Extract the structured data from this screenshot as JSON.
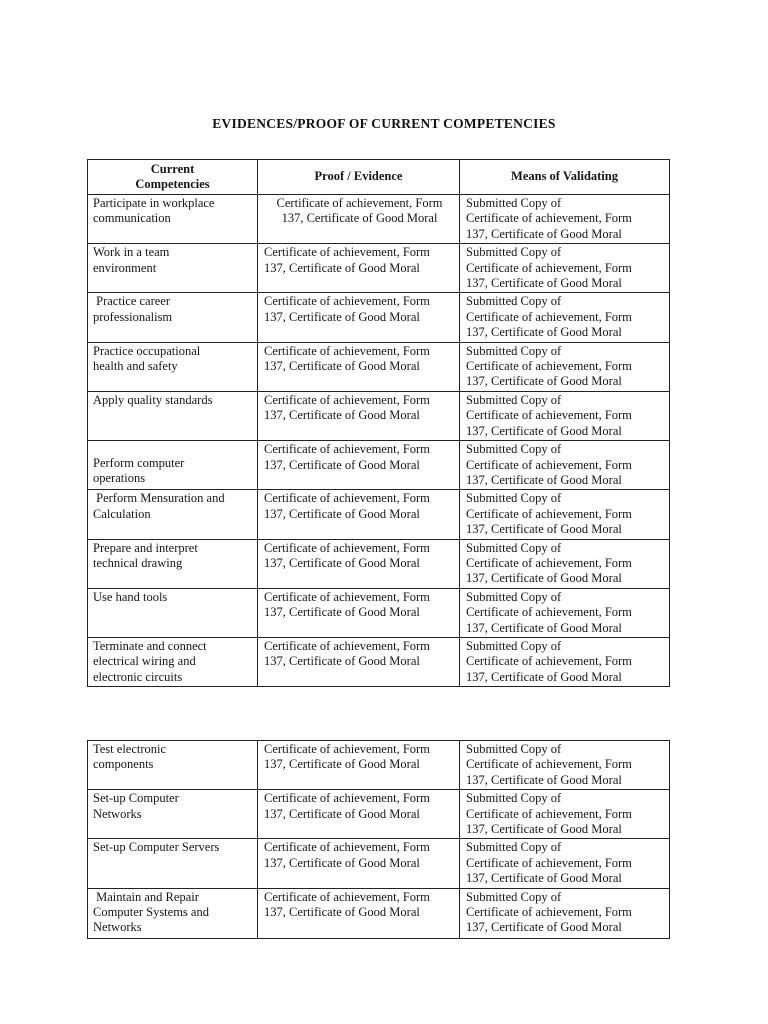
{
  "document": {
    "title": "EVIDENCES/PROOF OF CURRENT COMPETENCIES"
  },
  "table1": {
    "headers": {
      "competencies": "Current\nCompetencies",
      "proof": "Proof / Evidence",
      "means": "Means of Validating"
    },
    "rows": [
      {
        "competency": "Participate in workplace\ncommunication",
        "proof": "Certificate of achievement, Form\n137, Certificate of Good Moral",
        "means": "Submitted Copy of\nCertificate of achievement, Form\n137, Certificate of Good Moral",
        "proof_centered": true
      },
      {
        "competency": "Work in a team\nenvironment",
        "proof": "Certificate of achievement, Form\n137, Certificate of Good Moral",
        "means": "Submitted Copy of\nCertificate of achievement, Form\n137, Certificate of Good Moral"
      },
      {
        "competency": " Practice career\nprofessionalism",
        "proof": "Certificate of achievement, Form\n137, Certificate of Good Moral",
        "means": "Submitted Copy of\nCertificate of achievement, Form\n137, Certificate of Good Moral"
      },
      {
        "competency": "Practice occupational\nhealth and safety",
        "proof": "Certificate of achievement, Form\n137, Certificate of Good Moral",
        "means": "Submitted Copy of\nCertificate of achievement, Form\n137, Certificate of Good Moral"
      },
      {
        "competency": "Apply quality standards",
        "proof": "Certificate of achievement, Form\n137, Certificate of Good Moral",
        "means": "Submitted Copy of\nCertificate of achievement, Form\n137, Certificate of Good Moral"
      },
      {
        "competency": "Perform computer\noperations",
        "proof": "Certificate of achievement, Form\n137, Certificate of Good Moral",
        "means": "Submitted Copy of\nCertificate of achievement, Form\n137, Certificate of Good Moral",
        "competency_valign": "bottom"
      },
      {
        "competency": " Perform Mensuration and\nCalculation",
        "proof": "Certificate of achievement, Form\n137, Certificate of Good Moral",
        "means": "Submitted Copy of\nCertificate of achievement, Form\n137, Certificate of Good Moral"
      },
      {
        "competency": "Prepare and interpret\ntechnical drawing",
        "proof": "Certificate of achievement, Form\n137, Certificate of Good Moral",
        "means": "Submitted Copy of\nCertificate of achievement, Form\n137, Certificate of Good Moral"
      },
      {
        "competency": "Use hand tools",
        "proof": "Certificate of achievement, Form\n137, Certificate of Good Moral",
        "means": "Submitted Copy of\nCertificate of achievement, Form\n137, Certificate of Good Moral"
      },
      {
        "competency": "Terminate and connect\nelectrical wiring and\nelectronic circuits",
        "proof": "Certificate of achievement, Form\n137, Certificate of Good Moral",
        "means": "Submitted Copy of\nCertificate of achievement, Form\n137, Certificate of Good Moral"
      }
    ]
  },
  "table2": {
    "rows": [
      {
        "competency": "Test electronic\ncomponents",
        "proof": "Certificate of achievement, Form\n137, Certificate of Good Moral",
        "means": "Submitted Copy of\nCertificate of achievement, Form\n137, Certificate of Good Moral"
      },
      {
        "competency": "Set-up Computer\nNetworks",
        "proof": "Certificate of achievement, Form\n137, Certificate of Good Moral",
        "means": "Submitted Copy of\nCertificate of achievement, Form\n137, Certificate of Good Moral"
      },
      {
        "competency": "Set-up Computer Servers",
        "proof": "Certificate of achievement, Form\n137, Certificate of Good Moral",
        "means": "Submitted Copy of\nCertificate of achievement, Form\n137, Certificate of Good Moral"
      },
      {
        "competency": " Maintain and Repair\nComputer Systems and\nNetworks",
        "proof": "Certificate of achievement, Form\n137, Certificate of Good Moral",
        "means": "Submitted Copy of\nCertificate of achievement, Form\n137, Certificate of Good Moral"
      }
    ]
  }
}
